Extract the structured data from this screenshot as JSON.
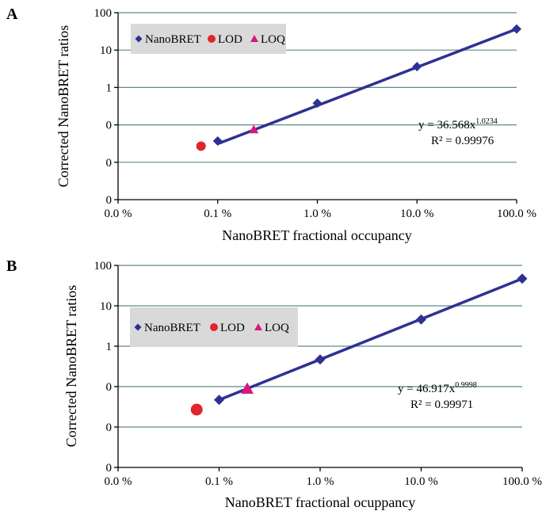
{
  "chart_data": [
    {
      "panel": "A",
      "type": "scatter",
      "xlabel": "NanoBRET fractional occupancy",
      "ylabel": "Corrected NanoBRET ratios",
      "x_scale": "log",
      "y_scale": "log",
      "x_ticks": [
        "0.0 %",
        "0.1 %",
        "1.0 %",
        "10.0 %",
        "100.0 %"
      ],
      "y_ticks": [
        "100",
        "10",
        "1",
        "0",
        "0",
        "0"
      ],
      "grid": "horizontal",
      "legend_placement": "top-left",
      "series": [
        {
          "name": "NanoBRET",
          "marker": "diamond",
          "color": "#2e3192",
          "x": [
            0.001,
            0.01,
            0.1,
            1.0
          ],
          "y": [
            0.037,
            0.38,
            3.6,
            36.6
          ]
        },
        {
          "name": "LOD",
          "marker": "circle",
          "color": "#e0252c",
          "x": [
            0.00068
          ],
          "y": [
            0.027
          ]
        },
        {
          "name": "LOQ",
          "marker": "triangle",
          "color": "#d6187f",
          "x": [
            0.0023
          ],
          "y": [
            0.075
          ]
        }
      ],
      "fit": {
        "a": 36.568,
        "b": 1.0234,
        "x_range": [
          0.001,
          1.0
        ],
        "color": "#2e3192"
      },
      "equation_text": "y = 36.568x",
      "equation_exponent": "1.0234",
      "r2_text": "R² = 0.99976"
    },
    {
      "panel": "B",
      "type": "scatter",
      "xlabel": "NanoBRET fractional ocuppancy",
      "ylabel": "Corrected NanoBRET ratios",
      "x_scale": "log",
      "y_scale": "log",
      "x_ticks": [
        "0.0 %",
        "0.1 %",
        "1.0 %",
        "10.0 %",
        "100.0 %"
      ],
      "y_ticks": [
        "100",
        "10",
        "1",
        "0",
        "0",
        "0"
      ],
      "grid": "horizontal",
      "legend_placement": "top-left",
      "series": [
        {
          "name": "NanoBRET",
          "marker": "diamond",
          "color": "#2e3192",
          "x": [
            0.001,
            0.01,
            0.1,
            1.0
          ],
          "y": [
            0.047,
            0.47,
            4.6,
            47.0
          ]
        },
        {
          "name": "LOD",
          "marker": "circle",
          "color": "#e0252c",
          "x": [
            0.0006
          ],
          "y": [
            0.027
          ]
        },
        {
          "name": "LOQ",
          "marker": "triangle",
          "color": "#d6187f",
          "x": [
            0.0019
          ],
          "y": [
            0.089
          ]
        }
      ],
      "fit": {
        "a": 46.917,
        "b": 0.9998,
        "x_range": [
          0.001,
          1.0
        ],
        "color": "#2e3192"
      },
      "equation_text": "y = 46.917x",
      "equation_exponent": "0.9998",
      "r2_text": "R² = 0.99971"
    }
  ]
}
